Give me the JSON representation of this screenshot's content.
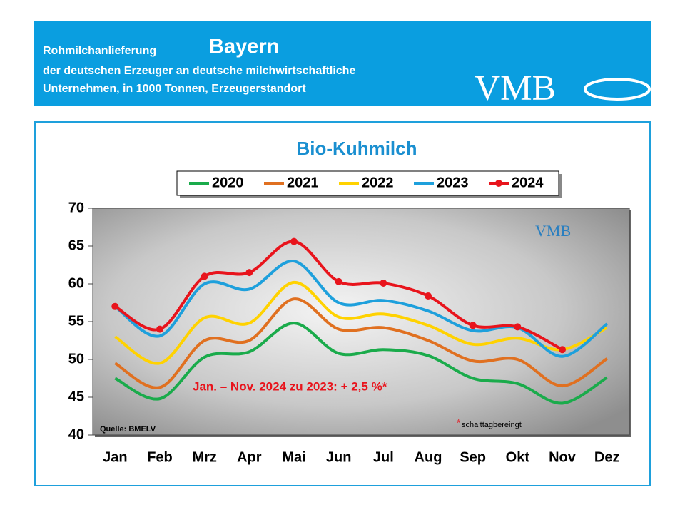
{
  "header": {
    "line1": "Rohmilchanlieferung",
    "region": "Bayern",
    "line2": "der deutschen Erzeuger an deutsche milchwirtschaftliche",
    "line3": "Unternehmen, in 1000 Tonnen, Erzeugerstandort",
    "logo": "VMB"
  },
  "chart_data": {
    "type": "line",
    "title": "Bio-Kuhmilch",
    "categories": [
      "Jan",
      "Feb",
      "Mrz",
      "Apr",
      "Mai",
      "Jun",
      "Jul",
      "Aug",
      "Sep",
      "Okt",
      "Nov",
      "Dez"
    ],
    "series": [
      {
        "name": "2020",
        "color": "#1aab4b",
        "values": [
          47.5,
          44.8,
          50.3,
          51,
          54.8,
          50.8,
          51.3,
          50.5,
          47.5,
          46.8,
          44.2,
          47.6
        ]
      },
      {
        "name": "2021",
        "color": "#e07020",
        "values": [
          49.5,
          46.3,
          52.5,
          52.5,
          58,
          54,
          54.2,
          52.5,
          49.8,
          50,
          46.5,
          50.1
        ]
      },
      {
        "name": "2022",
        "color": "#ffd200",
        "values": [
          53,
          49.5,
          55.5,
          54.8,
          60.2,
          55.6,
          56,
          54.5,
          52,
          52.8,
          51.3,
          54.2
        ]
      },
      {
        "name": "2023",
        "color": "#1ea0dc",
        "values": [
          57,
          53.1,
          60,
          59.3,
          63,
          57.5,
          57.8,
          56.4,
          53.8,
          54.2,
          50.4,
          54.7
        ]
      },
      {
        "name": "2024",
        "color": "#e8141c",
        "markers": true,
        "values": [
          57,
          54,
          61,
          61.5,
          65.6,
          60.3,
          60.1,
          58.4,
          54.5,
          54.3,
          51.3,
          null
        ]
      }
    ],
    "ylim": [
      40,
      70
    ],
    "yticks": [
      40,
      45,
      50,
      55,
      60,
      65,
      70
    ],
    "annotation": "Jan. – Nov. 2024 zu 2023: + 2,5 %*",
    "footnote_mark": "*",
    "footnote": "schalttagbereingt",
    "source": "Quelle:  BMELV",
    "watermark": "VMB"
  }
}
